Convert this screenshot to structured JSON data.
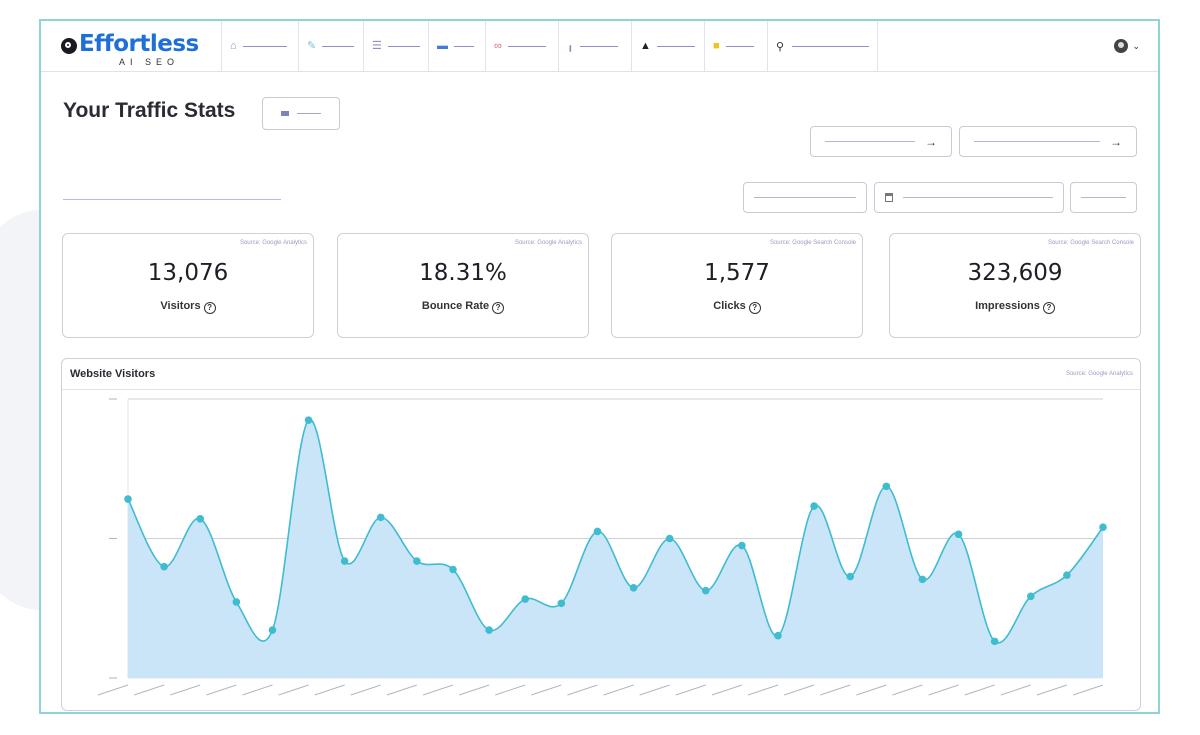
{
  "brand": {
    "name": "Effortless",
    "tagline": "AI SEO"
  },
  "nav": {
    "items": [
      {
        "icon": "home-icon",
        "glyph": "⌂",
        "color": "#8e90c8"
      },
      {
        "icon": "rocket-icon",
        "glyph": "✎",
        "color": "#79c7d0"
      },
      {
        "icon": "list-icon",
        "glyph": "☰",
        "color": "#8e90c8"
      },
      {
        "icon": "store-icon",
        "glyph": "▬",
        "color": "#3f7be0"
      },
      {
        "icon": "link-icon",
        "glyph": "∞",
        "color": "#e06a7a"
      },
      {
        "icon": "bar-chart-icon",
        "glyph": "╻",
        "color": "#8e90c8"
      },
      {
        "icon": "graduation-cap-icon",
        "glyph": "▲",
        "color": "#222222"
      },
      {
        "icon": "briefcase-icon",
        "glyph": "■",
        "color": "#f2c21b"
      }
    ],
    "search_icon": "search-icon"
  },
  "page": {
    "title": "Your Traffic Stats"
  },
  "stats": [
    {
      "source": "Source: Google Analytics",
      "value": "13,076",
      "label": "Visitors"
    },
    {
      "source": "Source: Google Analytics",
      "value": "18.31%",
      "label": "Bounce Rate"
    },
    {
      "source": "Source: Google Search Console",
      "value": "1,577",
      "label": "Clicks"
    },
    {
      "source": "Source: Google Search Console",
      "value": "323,609",
      "label": "Impressions"
    }
  ],
  "visitors_panel": {
    "title": "Website Visitors",
    "source": "Source: Google Analytics"
  },
  "colors": {
    "accent": "#1f6fd9",
    "line": "#3fbccf",
    "fill": "#cbe5f8",
    "frame": "#8fd3d6"
  },
  "chart_data": {
    "type": "area",
    "title": "Website Visitors",
    "x_count": 28,
    "values": [
      635,
      395,
      565,
      270,
      170,
      915,
      415,
      570,
      415,
      385,
      170,
      280,
      265,
      520,
      320,
      495,
      310,
      470,
      150,
      610,
      360,
      680,
      350,
      510,
      130,
      290,
      365,
      535
    ],
    "ylim": [
      0,
      990
    ],
    "y_gridlines": [
      0,
      495,
      990
    ],
    "grid": true,
    "legend": "none"
  }
}
